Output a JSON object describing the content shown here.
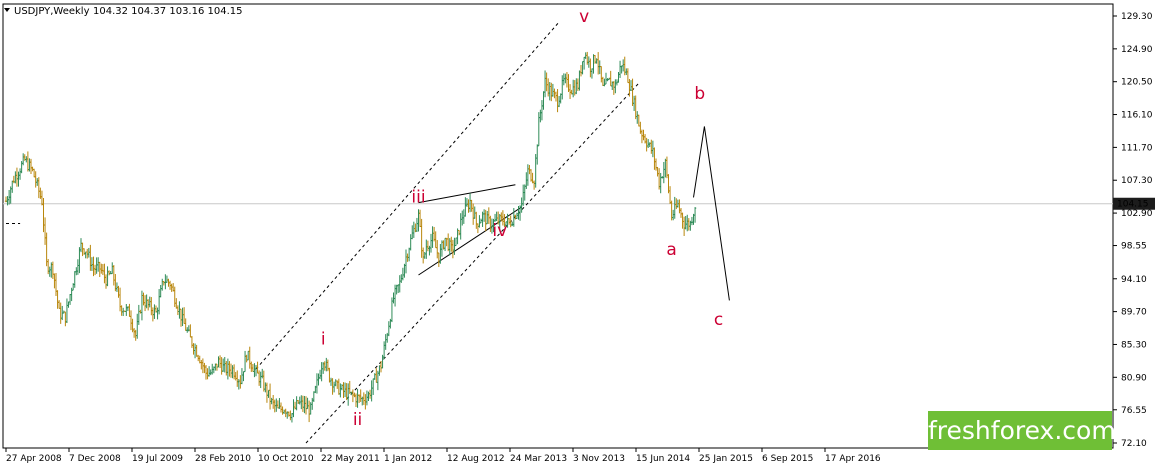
{
  "header": {
    "symbol": "USDJPY,Weekly",
    "ohlc": "104.32 104.37 103.16 104.15",
    "menu_icon": "triangle-down-icon"
  },
  "watermark": {
    "text": "freshforex.com",
    "bg_color": "#6fbf36"
  },
  "price_badge": {
    "text": "104.15",
    "bg_color": "#1c1c1c"
  },
  "colors": {
    "bull": "#2e8b57",
    "bear": "#b8860b",
    "wave": "#cc0033",
    "line": "#000000"
  },
  "chart_data": {
    "type": "candlestick",
    "timeframe": "Weekly",
    "symbol": "USDJPY",
    "y_ticks": [
      "129.30",
      "124.90",
      "120.50",
      "116.10",
      "111.70",
      "107.30",
      "102.90",
      "98.55",
      "94.10",
      "89.70",
      "85.30",
      "80.90",
      "76.55",
      "72.10"
    ],
    "ylim": [
      72.1,
      129.3
    ],
    "x_ticks": [
      "27 Apr 2008",
      "7 Dec 2008",
      "19 Jul 2009",
      "28 Feb 2010",
      "10 Oct 2010",
      "22 May 2011",
      "1 Jan 2012",
      "12 Aug 2012",
      "24 Mar 2013",
      "3 Nov 2013",
      "15 Jun 2014",
      "25 Jan 2015",
      "6 Sep 2015",
      "17 Apr 2016"
    ],
    "current_price": 104.15,
    "price_path": [
      [
        "2008-04-27",
        104.5
      ],
      [
        "2008-06-01",
        107.5
      ],
      [
        "2008-07-20",
        110.0
      ],
      [
        "2008-08-24",
        108.5
      ],
      [
        "2008-10-05",
        104.5
      ],
      [
        "2008-10-26",
        96.0
      ],
      [
        "2008-11-23",
        95.5
      ],
      [
        "2008-12-21",
        89.5
      ],
      [
        "2009-01-18",
        89.0
      ],
      [
        "2009-02-15",
        93.0
      ],
      [
        "2009-03-29",
        98.5
      ],
      [
        "2009-04-19",
        98.0
      ],
      [
        "2009-05-24",
        95.5
      ],
      [
        "2009-06-21",
        95.5
      ],
      [
        "2009-07-19",
        94.0
      ],
      [
        "2009-08-16",
        95.0
      ],
      [
        "2009-09-20",
        90.5
      ],
      [
        "2009-11-01",
        89.5
      ],
      [
        "2009-11-29",
        86.5
      ],
      [
        "2009-12-27",
        91.5
      ],
      [
        "2010-01-24",
        90.5
      ],
      [
        "2010-02-28",
        89.5
      ],
      [
        "2010-04-04",
        94.0
      ],
      [
        "2010-05-02",
        93.5
      ],
      [
        "2010-05-30",
        91.0
      ],
      [
        "2010-06-27",
        88.5
      ],
      [
        "2010-08-01",
        86.0
      ],
      [
        "2010-09-05",
        84.0
      ],
      [
        "2010-10-10",
        81.5
      ],
      [
        "2010-11-07",
        81.5
      ],
      [
        "2010-12-05",
        83.0
      ],
      [
        "2011-01-02",
        82.0
      ],
      [
        "2011-02-06",
        82.0
      ],
      [
        "2011-03-13",
        80.5
      ],
      [
        "2011-04-10",
        84.0
      ],
      [
        "2011-05-22",
        81.5
      ],
      [
        "2011-06-19",
        80.3
      ],
      [
        "2011-07-31",
        77.5
      ],
      [
        "2011-08-28",
        76.5
      ],
      [
        "2011-09-25",
        76.8
      ],
      [
        "2011-10-30",
        76.0
      ],
      [
        "2011-11-27",
        77.5
      ],
      [
        "2011-12-25",
        77.0
      ],
      [
        "2012-01-22",
        76.5
      ],
      [
        "2012-02-19",
        80.0
      ],
      [
        "2012-03-18",
        83.5
      ],
      [
        "2012-04-15",
        81.0
      ],
      [
        "2012-05-20",
        79.5
      ],
      [
        "2012-06-17",
        79.0
      ],
      [
        "2012-07-22",
        78.5
      ],
      [
        "2012-08-12",
        78.2
      ],
      [
        "2012-09-09",
        78.0
      ],
      [
        "2012-10-07",
        78.5
      ],
      [
        "2012-11-04",
        80.5
      ],
      [
        "2012-12-02",
        82.5
      ],
      [
        "2012-12-30",
        87.0
      ],
      [
        "2013-01-27",
        91.5
      ],
      [
        "2013-02-24",
        93.5
      ],
      [
        "2013-03-24",
        97.0
      ],
      [
        "2013-04-21",
        100.0
      ],
      [
        "2013-05-19",
        102.5
      ],
      [
        "2013-06-09",
        96.5
      ],
      [
        "2013-06-23",
        98.5
      ],
      [
        "2013-07-21",
        99.5
      ],
      [
        "2013-08-18",
        97.0
      ],
      [
        "2013-09-15",
        99.5
      ],
      [
        "2013-10-13",
        98.0
      ],
      [
        "2013-11-03",
        99.0
      ],
      [
        "2013-12-01",
        102.5
      ],
      [
        "2014-01-05",
        104.5
      ],
      [
        "2014-02-02",
        101.5
      ],
      [
        "2014-03-02",
        102.5
      ],
      [
        "2014-04-06",
        101.5
      ],
      [
        "2014-05-04",
        101.8
      ],
      [
        "2014-06-01",
        102.0
      ],
      [
        "2014-06-29",
        101.5
      ],
      [
        "2014-07-27",
        102.8
      ],
      [
        "2014-08-24",
        104.0
      ],
      [
        "2014-09-21",
        108.5
      ],
      [
        "2014-10-19",
        107.5
      ],
      [
        "2014-11-09",
        115.0
      ],
      [
        "2014-12-07",
        120.5
      ],
      [
        "2015-01-04",
        119.0
      ],
      [
        "2015-02-01",
        118.0
      ],
      [
        "2015-03-01",
        120.5
      ],
      [
        "2015-04-05",
        119.5
      ],
      [
        "2015-05-03",
        120.0
      ],
      [
        "2015-05-31",
        124.5
      ],
      [
        "2015-06-28",
        122.5
      ],
      [
        "2015-07-26",
        124.0
      ],
      [
        "2015-08-23",
        119.5
      ],
      [
        "2015-09-20",
        120.5
      ],
      [
        "2015-10-18",
        120.0
      ],
      [
        "2015-11-15",
        123.0
      ],
      [
        "2015-12-13",
        121.0
      ],
      [
        "2016-01-10",
        117.5
      ],
      [
        "2016-02-07",
        114.0
      ],
      [
        "2016-03-06",
        112.5
      ],
      [
        "2016-04-03",
        111.0
      ],
      [
        "2016-05-01",
        107.0
      ],
      [
        "2016-05-29",
        109.5
      ],
      [
        "2016-06-26",
        102.5
      ],
      [
        "2016-07-24",
        104.0
      ],
      [
        "2016-08-21",
        101.5
      ],
      [
        "2016-09-18",
        101.5
      ],
      [
        "2016-10-09",
        104.0
      ]
    ],
    "wave_labels": [
      {
        "text": "i",
        "date": "2012-03-18",
        "price": 85.3
      },
      {
        "text": "ii",
        "date": "2012-08-19",
        "price": 74.5
      },
      {
        "text": "iii",
        "date": "2013-05-19",
        "price": 104.3
      },
      {
        "text": "iv",
        "date": "2014-05-18",
        "price": 99.8
      },
      {
        "text": "v",
        "date": "2015-05-31",
        "price": 128.5
      },
      {
        "text": "a",
        "date": "2016-06-26",
        "price": 97.3
      },
      {
        "text": "b",
        "date": "2016-10-30",
        "price": 118.2
      },
      {
        "text": "c",
        "date": "2017-01-22",
        "price": 87.9
      }
    ],
    "projection": [
      [
        "2016-10-02",
        105.0
      ],
      [
        "2016-11-20",
        114.5
      ],
      [
        "2017-03-12",
        91.2
      ]
    ],
    "triangle_upper": [
      [
        "2013-05-19",
        104.3
      ],
      [
        "2014-07-27",
        106.7
      ]
    ],
    "triangle_lower": [
      [
        "2013-05-19",
        94.6
      ],
      [
        "2014-08-24",
        103.7
      ]
    ],
    "channel_upper": [
      [
        "2011-05-22",
        82.0
      ],
      [
        "2015-02-08",
        128.5
      ]
    ],
    "channel_lower": [
      [
        "2012-01-01",
        72.1
      ],
      [
        "2016-01-31",
        120.3
      ]
    ],
    "prior_level": [
      [
        "2008-04-27",
        101.5
      ],
      [
        "2008-06-29",
        101.5
      ]
    ],
    "grid": false
  }
}
